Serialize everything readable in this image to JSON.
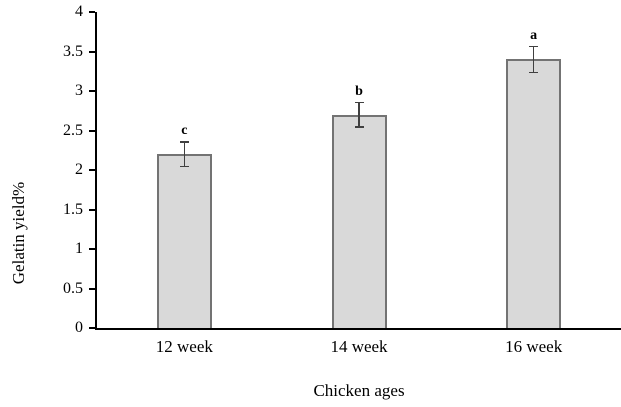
{
  "figure": {
    "background": "#ffffff"
  },
  "chart_data": {
    "type": "bar",
    "title": "",
    "xlabel": "Chicken ages",
    "ylabel": "Gelatin yield%",
    "categories": [
      "12 week",
      "14 week",
      "16 week"
    ],
    "values": [
      2.2,
      2.7,
      3.4
    ],
    "errors": [
      0.15,
      0.15,
      0.16
    ],
    "bar_letters": [
      "c",
      "b",
      "a"
    ],
    "ylim": [
      0,
      4
    ],
    "ytick_step": 0.5,
    "yticks": [
      "0",
      "0.5",
      "1",
      "1.5",
      "2",
      "2.5",
      "3",
      "3.5",
      "4"
    ],
    "grid": false,
    "legend": "none",
    "colors": {
      "bar_fill": "#d9d9d9",
      "bar_border": "#737373",
      "error_bar": "#404040",
      "axis": "#000000",
      "text": "#000000"
    }
  }
}
